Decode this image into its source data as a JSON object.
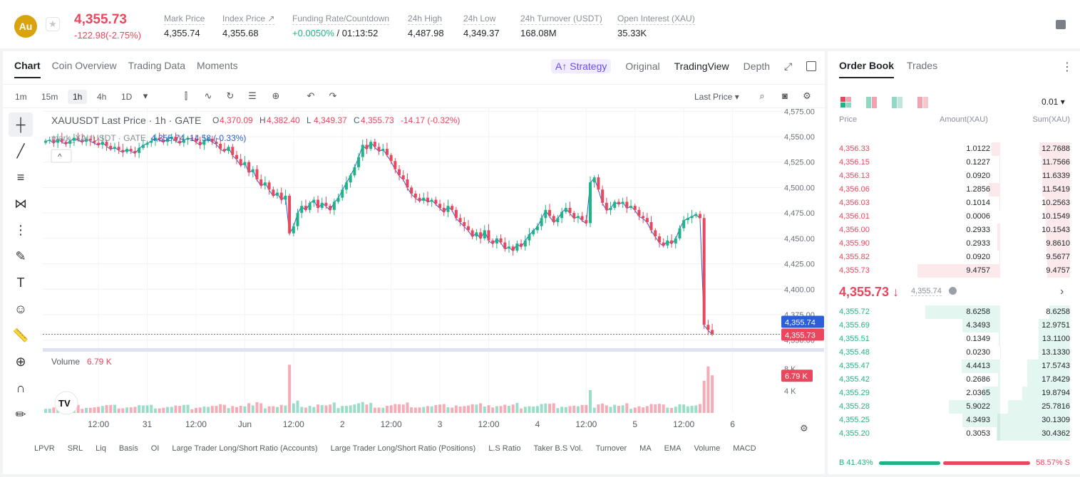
{
  "header": {
    "coin_logo": "Au",
    "last_price": "4,355.73",
    "change": "-122.98(-2.75%)",
    "stats": [
      {
        "label": "Mark Price",
        "value": "4,355.74"
      },
      {
        "label": "Index Price ↗",
        "value": "4,355.68"
      },
      {
        "label": "Funding Rate/Countdown",
        "value_green": "+0.0050%",
        "value": " / 01:13:52"
      },
      {
        "label": "24h High",
        "value": "4,487.98"
      },
      {
        "label": "24h Low",
        "value": "4,349.37"
      },
      {
        "label": "24h Turnover (USDT)",
        "value": "168.08M"
      },
      {
        "label": "Open Interest (XAU)",
        "value": "35.33K"
      }
    ]
  },
  "chart_tabs": [
    "Chart",
    "Coin Overview",
    "Trading Data",
    "Moments"
  ],
  "view_tabs": {
    "strategy": "A↑ Strategy",
    "original": "Original",
    "tradingview": "TradingView",
    "depth": "Depth"
  },
  "timeframes": [
    "1m",
    "15m",
    "1h",
    "4h",
    "1D"
  ],
  "price_selector": "Last Price",
  "chart_data": {
    "type": "candlestick",
    "legend_main": "XAUUSDT Last Price · 1h · GATE",
    "ohlc_labels": {
      "o": "4,370.09",
      "h": "4,382.40",
      "l": "4,349.37",
      "c": "4,355.73",
      "chg": "-14.17 (-0.32%)"
    },
    "legend_mark": "mark_XAUUSDT · GATE",
    "mark_values": "4,355.74  -14.58 (-0.33%)",
    "y_ticks": [
      4575,
      4550,
      4525,
      4500,
      4475,
      4450,
      4425,
      4400,
      4375,
      4350
    ],
    "y_tick_labels": [
      "4,575.00",
      "4,550.00",
      "4,525.00",
      "4,500.00",
      "4,475.00",
      "4,450.00",
      "4,425.00",
      "4,400.00",
      "4,375.00",
      "4,350.00"
    ],
    "ylim": [
      4347,
      4578
    ],
    "x_ticks": [
      {
        "label": "12:00",
        "i": 13
      },
      {
        "label": "31",
        "i": 25
      },
      {
        "label": "12:00",
        "i": 37
      },
      {
        "label": "Jun",
        "i": 49
      },
      {
        "label": "12:00",
        "i": 61
      },
      {
        "label": "2",
        "i": 73
      },
      {
        "label": "12:00",
        "i": 85
      },
      {
        "label": "3",
        "i": 97
      },
      {
        "label": "12:00",
        "i": 109
      },
      {
        "label": "4",
        "i": 121
      },
      {
        "label": "12:00",
        "i": 133
      },
      {
        "label": "5",
        "i": 145
      },
      {
        "label": "12:00",
        "i": 157
      },
      {
        "label": "6",
        "i": 169
      }
    ],
    "closes": [
      4546,
      4547,
      4544,
      4548,
      4545,
      4543,
      4546,
      4549,
      4547,
      4545,
      4548,
      4546,
      4544,
      4542,
      4545,
      4541,
      4538,
      4540,
      4537,
      4535,
      4538,
      4536,
      4534,
      4539,
      4542,
      4544,
      4546,
      4549,
      4547,
      4545,
      4548,
      4550,
      4546,
      4544,
      4547,
      4549,
      4548,
      4545,
      4542,
      4546,
      4548,
      4545,
      4543,
      4538,
      4536,
      4540,
      4532,
      4528,
      4522,
      4525,
      4515,
      4518,
      4508,
      4502,
      4505,
      4498,
      4492,
      4495,
      4488,
      4492,
      4455,
      4462,
      4475,
      4482,
      4478,
      4485,
      4488,
      4480,
      4485,
      4482,
      4478,
      4486,
      4490,
      4498,
      4505,
      4512,
      4520,
      4530,
      4542,
      4538,
      4545,
      4540,
      4536,
      4538,
      4532,
      4526,
      4518,
      4512,
      4508,
      4500,
      4494,
      4490,
      4487,
      4490,
      4486,
      4488,
      4484,
      4480,
      4476,
      4482,
      4478,
      4470,
      4466,
      4462,
      4458,
      4452,
      4456,
      4450,
      4458,
      4448,
      4445,
      4450,
      4446,
      4440,
      4442,
      4438,
      4445,
      4442,
      4448,
      4454,
      4458,
      4462,
      4470,
      4478,
      4472,
      4466,
      4470,
      4476,
      4480,
      4475,
      4470,
      4472,
      4468,
      4465,
      4505,
      4510,
      4498,
      4485,
      4478,
      4480,
      4486,
      4484,
      4486,
      4480,
      4482,
      4478,
      4472,
      4470,
      4466,
      4458,
      4452,
      4446,
      4443,
      4448,
      4445,
      4450,
      4460,
      4468,
      4470,
      4472,
      4474,
      4470,
      4365,
      4360,
      4356
    ],
    "volume_label": "Volume",
    "volume_value": "6.79 K",
    "volume_ticks": [
      {
        "v": 8000,
        "label": "8 K"
      },
      {
        "v": 4000,
        "label": "4 K"
      }
    ],
    "volume_max": 9000,
    "price_tags": {
      "mark": "4,355.74",
      "last": "4,355.73",
      "vol": "6.79 K"
    }
  },
  "indicators": [
    "LPVR",
    "SRL",
    "Liq",
    "Basis",
    "OI",
    "Large Trader Long/Short Ratio (Accounts)",
    "Large Trader Long/Short Ratio (Positions)",
    "L.S Ratio",
    "Taker B.S Vol.",
    "Turnover",
    "MA",
    "EMA",
    "Volume",
    "MACD"
  ],
  "order_book": {
    "tabs": [
      "Order Book",
      "Trades"
    ],
    "precision": "0.01",
    "columns": [
      "Price",
      "Amount(XAU)",
      "Sum(XAU)"
    ],
    "asks": [
      {
        "price": "4,356.33",
        "amount": "1.0122",
        "sum": "12.7688"
      },
      {
        "price": "4,356.15",
        "amount": "0.1227",
        "sum": "11.7566"
      },
      {
        "price": "4,356.13",
        "amount": "0.0920",
        "sum": "11.6339"
      },
      {
        "price": "4,356.06",
        "amount": "1.2856",
        "sum": "11.5419"
      },
      {
        "price": "4,356.03",
        "amount": "0.1014",
        "sum": "10.2563"
      },
      {
        "price": "4,356.01",
        "amount": "0.0006",
        "sum": "10.1549"
      },
      {
        "price": "4,356.00",
        "amount": "0.2933",
        "sum": "10.1543"
      },
      {
        "price": "4,355.90",
        "amount": "0.2933",
        "sum": "9.8610"
      },
      {
        "price": "4,355.82",
        "amount": "0.0920",
        "sum": "9.5677"
      },
      {
        "price": "4,355.73",
        "amount": "9.4757",
        "sum": "9.4757"
      }
    ],
    "mid_price": "4,355.73 ↓",
    "mid_mark": "4,355.74",
    "bids": [
      {
        "price": "4,355.72",
        "amount": "8.6258",
        "sum": "8.6258"
      },
      {
        "price": "4,355.69",
        "amount": "4.3493",
        "sum": "12.9751"
      },
      {
        "price": "4,355.51",
        "amount": "0.1349",
        "sum": "13.1100"
      },
      {
        "price": "4,355.48",
        "amount": "0.0230",
        "sum": "13.1330"
      },
      {
        "price": "4,355.47",
        "amount": "4.4413",
        "sum": "17.5743"
      },
      {
        "price": "4,355.42",
        "amount": "0.2686",
        "sum": "17.8429"
      },
      {
        "price": "4,355.29",
        "amount": "2.0365",
        "sum": "19.8794"
      },
      {
        "price": "4,355.28",
        "amount": "5.9022",
        "sum": "25.7816"
      },
      {
        "price": "4,355.25",
        "amount": "4.3493",
        "sum": "30.1309"
      },
      {
        "price": "4,355.20",
        "amount": "0.3053",
        "sum": "30.4362"
      }
    ],
    "buy_ratio": "B 41.43%",
    "sell_ratio": "58.57% S",
    "buy_pct": 41.43
  },
  "colors": {
    "up": "#1fb386",
    "down": "#e8475d",
    "accent": "#6a4cf5"
  }
}
